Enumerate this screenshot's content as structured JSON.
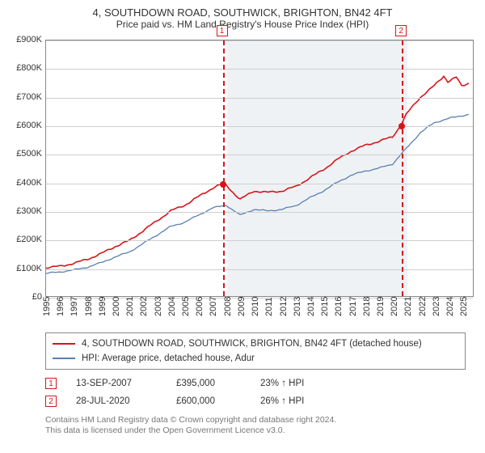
{
  "title": "4, SOUTHDOWN ROAD, SOUTHWICK, BRIGHTON, BN42 4FT",
  "subtitle": "Price paid vs. HM Land Registry's House Price Index (HPI)",
  "chart": {
    "type": "line",
    "x": {
      "min": 1995,
      "max": 2025.8,
      "ticks": [
        1995,
        1996,
        1997,
        1998,
        1999,
        2000,
        2001,
        2002,
        2003,
        2004,
        2005,
        2006,
        2007,
        2008,
        2009,
        2010,
        2011,
        2012,
        2013,
        2014,
        2015,
        2016,
        2017,
        2018,
        2019,
        2020,
        2021,
        2022,
        2023,
        2024,
        2025
      ]
    },
    "y": {
      "min": 0,
      "max": 900,
      "ticks": [
        0,
        100,
        200,
        300,
        400,
        500,
        600,
        700,
        800,
        900
      ],
      "unit_prefix": "£",
      "unit_suffix": "K"
    },
    "grid_color": "#cfcfcf",
    "axis_color": "#888888",
    "background": "#ffffff",
    "shaded_band": {
      "from_year": 2008.0,
      "to_year": 2021.0,
      "color": "#eef2f5"
    },
    "series": [
      {
        "name": "4, SOUTHDOWN ROAD, SOUTHWICK, BRIGHTON, BN42 4FT (detached house)",
        "color": "#d6151a",
        "width": 1.6,
        "points": [
          [
            1995,
            100
          ],
          [
            1996,
            105
          ],
          [
            1997,
            115
          ],
          [
            1998,
            130
          ],
          [
            1999,
            150
          ],
          [
            2000,
            175
          ],
          [
            2001,
            195
          ],
          [
            2002,
            230
          ],
          [
            2003,
            265
          ],
          [
            2004,
            300
          ],
          [
            2005,
            320
          ],
          [
            2006,
            350
          ],
          [
            2007,
            380
          ],
          [
            2007.7,
            395
          ],
          [
            2008,
            390
          ],
          [
            2009,
            340
          ],
          [
            2010,
            370
          ],
          [
            2011,
            365
          ],
          [
            2012,
            370
          ],
          [
            2013,
            385
          ],
          [
            2014,
            415
          ],
          [
            2015,
            445
          ],
          [
            2016,
            480
          ],
          [
            2017,
            510
          ],
          [
            2018,
            530
          ],
          [
            2019,
            545
          ],
          [
            2020,
            560
          ],
          [
            2020.58,
            600
          ],
          [
            2021,
            640
          ],
          [
            2022,
            700
          ],
          [
            2023,
            740
          ],
          [
            2023.7,
            775
          ],
          [
            2024,
            755
          ],
          [
            2024.6,
            770
          ],
          [
            2025,
            740
          ],
          [
            2025.5,
            750
          ]
        ]
      },
      {
        "name": "HPI: Average price, detached house, Adur",
        "color": "#5a7fb0",
        "width": 1.3,
        "points": [
          [
            1995,
            80
          ],
          [
            1996,
            85
          ],
          [
            1997,
            92
          ],
          [
            1998,
            102
          ],
          [
            1999,
            118
          ],
          [
            2000,
            138
          ],
          [
            2001,
            155
          ],
          [
            2002,
            185
          ],
          [
            2003,
            215
          ],
          [
            2004,
            245
          ],
          [
            2005,
            260
          ],
          [
            2006,
            285
          ],
          [
            2007,
            310
          ],
          [
            2008,
            320
          ],
          [
            2009,
            285
          ],
          [
            2010,
            305
          ],
          [
            2011,
            300
          ],
          [
            2012,
            305
          ],
          [
            2013,
            318
          ],
          [
            2014,
            345
          ],
          [
            2015,
            370
          ],
          [
            2016,
            400
          ],
          [
            2017,
            425
          ],
          [
            2018,
            440
          ],
          [
            2019,
            450
          ],
          [
            2020,
            465
          ],
          [
            2021,
            520
          ],
          [
            2022,
            575
          ],
          [
            2023,
            610
          ],
          [
            2024,
            625
          ],
          [
            2025,
            635
          ],
          [
            2025.5,
            640
          ]
        ]
      }
    ],
    "events": [
      {
        "id": "1",
        "year": 2007.7,
        "value": 395,
        "line_color": "#d6151a",
        "date": "13-SEP-2007",
        "price": "£395,000",
        "pct": "23% ↑ HPI"
      },
      {
        "id": "2",
        "year": 2020.58,
        "value": 600,
        "line_color": "#d6151a",
        "date": "28-JUL-2020",
        "price": "£600,000",
        "pct": "26% ↑ HPI"
      }
    ]
  },
  "legend": {
    "items": [
      {
        "color": "#d6151a",
        "label": "4, SOUTHDOWN ROAD, SOUTHWICK, BRIGHTON, BN42 4FT (detached house)"
      },
      {
        "color": "#5a7fb0",
        "label": "HPI: Average price, detached house, Adur"
      }
    ]
  },
  "footnote": {
    "line1": "Contains HM Land Registry data © Crown copyright and database right 2024.",
    "line2": "This data is licensed under the Open Government Licence v3.0."
  },
  "styling": {
    "title_fontsize": 13,
    "subtitle_fontsize": 12,
    "tick_fontsize": 11,
    "legend_fontsize": 11.5,
    "footnote_fontsize": 10.5,
    "footnote_color": "#777777"
  }
}
